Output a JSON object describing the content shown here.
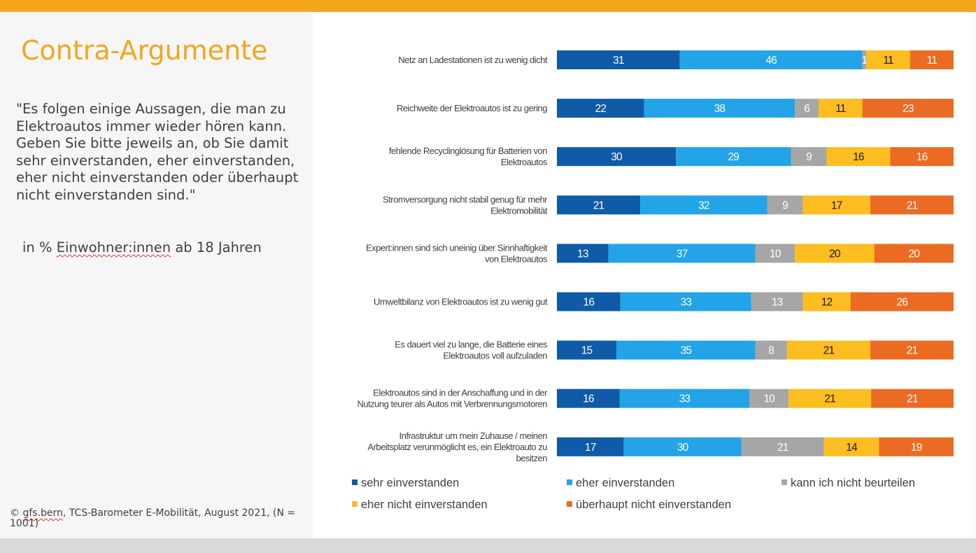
{
  "title": "Contra-Argumente",
  "question_text": "\"Es folgen einige Aussagen, die man zu Elektroautos immer wieder hören kann. Geben Sie bitte jeweils an, ob Sie damit sehr einverstanden, eher einverstanden, eher nicht einverstanden oder überhaupt nicht einverstanden sind.\"",
  "basis": {
    "prefix": "in % ",
    "underlined": "Einwohner:innen",
    "suffix": " ab 18 Jahren"
  },
  "source": {
    "symbol": "© ",
    "underlined": "gfs.bern",
    "rest": ", TCS-Barometer E-Mobilität, August 2021, (N = 1001)"
  },
  "colors": {
    "accent": "#f4a51c",
    "bottom_bar": "#d9d9d9"
  },
  "chart_data": {
    "type": "bar",
    "orientation": "horizontal-stacked-100",
    "unit": "%",
    "categories": [
      "Netz an Ladestationen ist zu wenig dicht",
      "Reichweite der Elektroautos ist zu gering",
      "fehlende Recyclinglösung für Batterien von Elektroautos",
      "Stromversorgung nicht stabil genug für mehr Elektromobilität",
      "Expert:innen sind sich uneinig über Sinnhaftigkeit von Elektroautos",
      "Umweltbilanz von Elektroautos ist zu wenig gut",
      "Es dauert viel zu lange, die Batterie eines Elektroautos voll aufzuladen",
      "Elektroautos sind in der Anschaffung und in der Nutzung teurer als Autos mit Verbrennungsmotoren",
      "Infrastruktur um mein Zuhause / meinen Arbeitsplatz verunmöglicht es, ein Elektroauto zu besitzen"
    ],
    "category_lines": [
      [
        "Netz an Ladestationen ist zu wenig dicht"
      ],
      [
        "Reichweite der Elektroautos ist zu gering"
      ],
      [
        "fehlende Recyclinglösung für Batterien von",
        "Elektroautos"
      ],
      [
        "Stromversorgung nicht stabil genug für mehr",
        "Elektromobilität"
      ],
      [
        "Expert:innen sind sich uneinig über Sinnhaftigkeit",
        "von Elektroautos"
      ],
      [
        "Umweltbilanz von Elektroautos ist zu wenig gut"
      ],
      [
        "Es dauert viel zu lange, die Batterie eines",
        "Elektroautos voll aufzuladen"
      ],
      [
        "Elektroautos sind in der Anschaffung und in der",
        "Nutzung teurer als Autos mit Verbrennungsmotoren"
      ],
      [
        "Infrastruktur um mein Zuhause /  meinen",
        "Arbeitsplatz verunmöglicht es, ein Elektroauto zu",
        "besitzen"
      ]
    ],
    "series": [
      {
        "name": "sehr einverstanden",
        "color": "#0f5ba8",
        "label_color": "#ffffff",
        "values": [
          31,
          22,
          30,
          21,
          13,
          16,
          15,
          16,
          17
        ]
      },
      {
        "name": "eher einverstanden",
        "color": "#23a3e8",
        "label_color": "#ffffff",
        "values": [
          46,
          38,
          29,
          32,
          37,
          33,
          35,
          33,
          30
        ]
      },
      {
        "name": "kann ich nicht beurteilen",
        "color": "#a6a6a6",
        "label_color": "#ffffff",
        "values": [
          1,
          6,
          9,
          9,
          10,
          13,
          8,
          10,
          21
        ]
      },
      {
        "name": "eher nicht einverstanden",
        "color": "#fcbd21",
        "label_color": "#1a1a1a",
        "values": [
          11,
          11,
          16,
          17,
          20,
          12,
          21,
          21,
          14
        ]
      },
      {
        "name": "überhaupt nicht einverstanden",
        "color": "#ec6b23",
        "label_color": "#ffffff",
        "values": [
          11,
          23,
          16,
          21,
          20,
          26,
          21,
          21,
          19
        ]
      }
    ],
    "legend_position": "bottom",
    "grid": false
  }
}
